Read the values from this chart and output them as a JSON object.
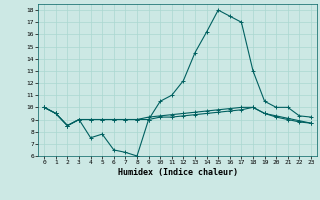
{
  "xlabel": "Humidex (Indice chaleur)",
  "background_color": "#cce8e4",
  "grid_color": "#aad8d0",
  "line_color": "#006060",
  "xlim": [
    -0.5,
    23.5
  ],
  "ylim": [
    6,
    18.5
  ],
  "xtick_labels": [
    "0",
    "1",
    "2",
    "3",
    "4",
    "5",
    "6",
    "7",
    "8",
    "9",
    "10",
    "11",
    "12",
    "13",
    "14",
    "15",
    "16",
    "17",
    "18",
    "19",
    "20",
    "21",
    "22",
    "23"
  ],
  "ytick_labels": [
    "6",
    "7",
    "8",
    "9",
    "10",
    "11",
    "12",
    "13",
    "14",
    "15",
    "16",
    "17",
    "18"
  ],
  "ytick_vals": [
    6,
    7,
    8,
    9,
    10,
    11,
    12,
    13,
    14,
    15,
    16,
    17,
    18
  ],
  "line1_y": [
    10.0,
    9.5,
    8.5,
    9.0,
    7.5,
    7.8,
    6.5,
    6.3,
    6.0,
    9.0,
    10.5,
    11.0,
    12.2,
    14.5,
    16.2,
    18.0,
    17.5,
    17.0,
    13.0,
    10.5,
    10.0,
    10.0,
    9.3,
    9.2
  ],
  "line2_y": [
    10.0,
    9.5,
    8.5,
    9.0,
    9.0,
    9.0,
    9.0,
    9.0,
    9.0,
    9.0,
    9.2,
    9.2,
    9.3,
    9.4,
    9.5,
    9.6,
    9.7,
    9.8,
    10.0,
    9.5,
    9.2,
    9.0,
    8.8,
    8.7
  ],
  "line3_y": [
    10.0,
    9.5,
    8.5,
    9.0,
    9.0,
    9.0,
    9.0,
    9.0,
    9.0,
    9.2,
    9.3,
    9.4,
    9.5,
    9.6,
    9.7,
    9.8,
    9.9,
    10.0,
    10.0,
    9.5,
    9.3,
    9.1,
    8.9,
    8.7
  ]
}
